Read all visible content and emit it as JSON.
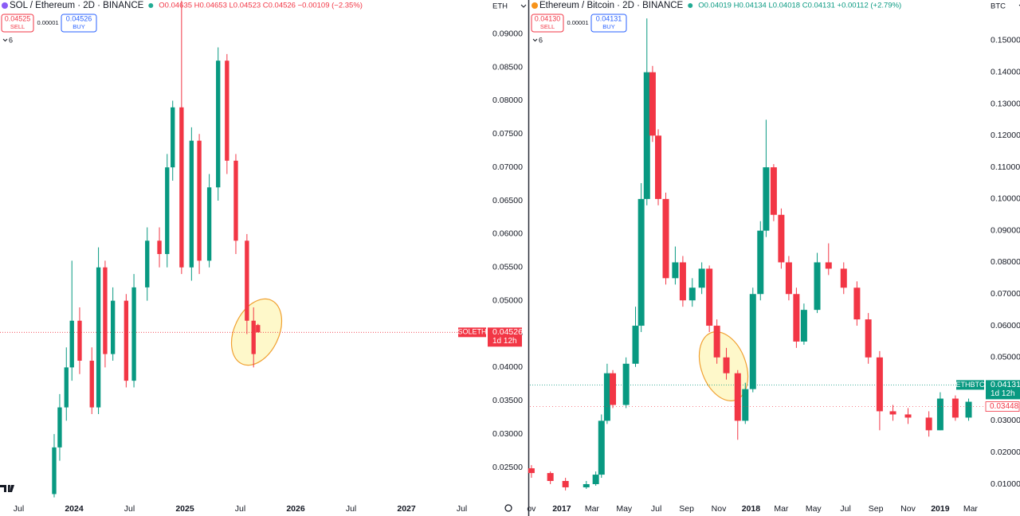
{
  "chart_data": [
    {
      "type": "candlestick",
      "title": "SOL / Ethereum · 2D · BINANCE",
      "ohlc": "O0.04635 H0.04653 L0.04523 C0.04526 −0.00109 (−2.35%)",
      "currency": "ETH",
      "sell": "0.04525",
      "sell_label": "SELL",
      "spread": "0.00001",
      "buy": "0.04526",
      "buy_label": "BUY",
      "indicators": "6",
      "symbol": "SOLETH",
      "countdown": "1d 12h",
      "up_color": "#089981",
      "down_color": "#f23645",
      "grid": false,
      "xlim": [
        2023.331,
        2027.719
      ],
      "ylim": [
        0.0201,
        0.0951
      ],
      "xticks": [
        {
          "value": 2023.5,
          "label": "Jul"
        },
        2024,
        {
          "value": 2024.5,
          "label": "Jul"
        },
        2025,
        {
          "value": 2025.5,
          "label": "Jul"
        },
        2026,
        {
          "value": 2026.5,
          "label": "Jul"
        },
        2027,
        {
          "value": 2027.5,
          "label": "Jul"
        }
      ],
      "yticks": [
        {
          "value": 0.025,
          "label": "0.02500"
        },
        {
          "value": 0.03,
          "label": "0.03000"
        },
        {
          "value": 0.035,
          "label": "0.03500"
        },
        {
          "value": 0.04,
          "label": "0.04000"
        },
        {
          "value": 0.045,
          "label": "0.04500"
        },
        {
          "value": 0.05,
          "label": "0.05000"
        },
        {
          "value": 0.055,
          "label": "0.05500"
        },
        {
          "value": 0.06,
          "label": "0.06000"
        },
        {
          "value": 0.065,
          "label": "0.06500"
        },
        {
          "value": 0.07,
          "label": "0.07000"
        },
        {
          "value": 0.075,
          "label": "0.07500"
        },
        {
          "value": 0.08,
          "label": "0.08000"
        },
        {
          "value": 0.085,
          "label": "0.08500"
        },
        {
          "value": 0.09,
          "label": "0.09000"
        }
      ],
      "x": [
        2023.82,
        2023.87,
        2023.93,
        2023.98,
        2024.05,
        2024.16,
        2024.22,
        2024.28,
        2024.35,
        2024.47,
        2024.54,
        2024.66,
        2024.77,
        2024.84,
        2024.89,
        2024.97,
        2025.06,
        2025.13,
        2025.22,
        2025.3,
        2025.38,
        2025.46,
        2025.56,
        2025.62,
        2025.66
      ],
      "open": [
        0.021,
        0.028,
        0.034,
        0.04,
        0.047,
        0.041,
        0.034,
        0.055,
        0.042,
        0.05,
        0.038,
        0.052,
        0.059,
        0.057,
        0.07,
        0.079,
        0.055,
        0.074,
        0.056,
        0.067,
        0.086,
        0.071,
        0.059,
        0.047,
        0.04635
      ],
      "high": [
        0.03,
        0.036,
        0.043,
        0.056,
        0.049,
        0.043,
        0.058,
        0.056,
        0.052,
        0.051,
        0.054,
        0.061,
        0.061,
        0.072,
        0.08,
        0.095,
        0.076,
        0.075,
        0.069,
        0.088,
        0.087,
        0.072,
        0.06,
        0.049,
        0.04653
      ],
      "low": [
        0.0205,
        0.026,
        0.032,
        0.038,
        0.039,
        0.033,
        0.033,
        0.04,
        0.041,
        0.037,
        0.037,
        0.05,
        0.055,
        0.055,
        0.068,
        0.054,
        0.053,
        0.054,
        0.055,
        0.065,
        0.069,
        0.057,
        0.045,
        0.04,
        0.04523
      ],
      "close": [
        0.028,
        0.034,
        0.04,
        0.047,
        0.041,
        0.034,
        0.055,
        0.042,
        0.05,
        0.038,
        0.052,
        0.059,
        0.057,
        0.07,
        0.079,
        0.055,
        0.074,
        0.056,
        0.067,
        0.086,
        0.071,
        0.059,
        0.047,
        0.042,
        0.04526
      ]
    },
    {
      "type": "candlestick",
      "title": "Ethereum / Bitcoin · 2D · BINANCE",
      "ohlc": "O0.04019 H0.04134 L0.04018 C0.04131 +0.00112 (+2.79%)",
      "currency": "BTC",
      "sell": "0.04130",
      "sell_label": "SELL",
      "spread": "0.00001",
      "buy": "0.04131",
      "buy_label": "BUY",
      "indicators": "6",
      "symbol": "ETHBTC",
      "countdown": "1d 12h",
      "marker_price": 0.03448,
      "up_color": "#089981",
      "down_color": "#f23645",
      "grid": false,
      "xlim": [
        2016.832,
        2019.232
      ],
      "ylim": [
        0.00497,
        0.1628
      ],
      "xticks": [
        {
          "value": 2016.84,
          "label": "ov"
        },
        2017,
        {
          "value": 2017.16,
          "label": "Mar"
        },
        {
          "value": 2017.33,
          "label": "May"
        },
        {
          "value": 2017.5,
          "label": "Jul"
        },
        {
          "value": 2017.66,
          "label": "Sep"
        },
        {
          "value": 2017.83,
          "label": "Nov"
        },
        2018,
        {
          "value": 2018.16,
          "label": "Mar"
        },
        {
          "value": 2018.33,
          "label": "May"
        },
        {
          "value": 2018.5,
          "label": "Jul"
        },
        {
          "value": 2018.66,
          "label": "Sep"
        },
        {
          "value": 2018.83,
          "label": "Nov"
        },
        2019,
        {
          "value": 2019.16,
          "label": "Mar"
        }
      ],
      "yticks": [
        {
          "value": 0.01,
          "label": "0.01000"
        },
        {
          "value": 0.02,
          "label": "0.02000"
        },
        {
          "value": 0.03,
          "label": "0.03000"
        },
        {
          "value": 0.04,
          "label": "0.04000"
        },
        {
          "value": 0.05,
          "label": "0.05000"
        },
        {
          "value": 0.06,
          "label": "0.06000"
        },
        {
          "value": 0.07,
          "label": "0.07000"
        },
        {
          "value": 0.08,
          "label": "0.08000"
        },
        {
          "value": 0.09,
          "label": "0.09000"
        },
        {
          "value": 0.1,
          "label": "0.10000"
        },
        {
          "value": 0.11,
          "label": "0.11000"
        },
        {
          "value": 0.12,
          "label": "0.12000"
        },
        {
          "value": 0.13,
          "label": "0.13000"
        },
        {
          "value": 0.14,
          "label": "0.14000"
        },
        {
          "value": 0.15,
          "label": "0.15000"
        }
      ],
      "x": [
        2016.84,
        2016.94,
        2017.02,
        2017.13,
        2017.18,
        2017.21,
        2017.24,
        2017.27,
        2017.34,
        2017.39,
        2017.42,
        2017.45,
        2017.48,
        2017.51,
        2017.55,
        2017.6,
        2017.64,
        2017.69,
        2017.74,
        2017.78,
        2017.82,
        2017.87,
        2017.93,
        2017.97,
        2018.01,
        2018.05,
        2018.08,
        2018.12,
        2018.16,
        2018.2,
        2018.24,
        2018.28,
        2018.35,
        2018.41,
        2018.49,
        2018.56,
        2018.62,
        2018.68,
        2018.75,
        2018.83,
        2018.94,
        2019.0,
        2019.08,
        2019.15,
        2019.19
      ],
      "open": [
        0.015,
        0.0135,
        0.011,
        0.009,
        0.01,
        0.013,
        0.03,
        0.045,
        0.035,
        0.048,
        0.06,
        0.1,
        0.14,
        0.12,
        0.1,
        0.075,
        0.08,
        0.068,
        0.072,
        0.078,
        0.06,
        0.05,
        0.045,
        0.03,
        0.04,
        0.07,
        0.09,
        0.11,
        0.095,
        0.08,
        0.07,
        0.055,
        0.065,
        0.08,
        0.078,
        0.072,
        0.062,
        0.05,
        0.033,
        0.032,
        0.031,
        0.027,
        0.037,
        0.031,
        0.04019
      ],
      "high": [
        0.016,
        0.014,
        0.012,
        0.011,
        0.014,
        0.032,
        0.048,
        0.046,
        0.05,
        0.066,
        0.105,
        0.157,
        0.142,
        0.122,
        0.102,
        0.085,
        0.082,
        0.075,
        0.08,
        0.079,
        0.062,
        0.053,
        0.046,
        0.042,
        0.072,
        0.093,
        0.125,
        0.111,
        0.097,
        0.082,
        0.072,
        0.067,
        0.083,
        0.086,
        0.08,
        0.074,
        0.064,
        0.052,
        0.035,
        0.034,
        0.033,
        0.039,
        0.038,
        0.037,
        0.04134
      ],
      "low": [
        0.012,
        0.01,
        0.008,
        0.0085,
        0.0095,
        0.012,
        0.029,
        0.034,
        0.034,
        0.047,
        0.058,
        0.098,
        0.118,
        0.098,
        0.073,
        0.073,
        0.066,
        0.066,
        0.07,
        0.058,
        0.048,
        0.043,
        0.024,
        0.029,
        0.039,
        0.068,
        0.088,
        0.093,
        0.078,
        0.068,
        0.053,
        0.054,
        0.064,
        0.076,
        0.07,
        0.06,
        0.048,
        0.027,
        0.03,
        0.029,
        0.025,
        0.027,
        0.03,
        0.03,
        0.04018
      ],
      "close": [
        0.0135,
        0.011,
        0.009,
        0.01,
        0.013,
        0.03,
        0.045,
        0.035,
        0.048,
        0.06,
        0.1,
        0.14,
        0.12,
        0.1,
        0.075,
        0.08,
        0.068,
        0.072,
        0.078,
        0.06,
        0.05,
        0.045,
        0.03,
        0.04,
        0.07,
        0.09,
        0.11,
        0.095,
        0.08,
        0.07,
        0.055,
        0.065,
        0.08,
        0.078,
        0.072,
        0.062,
        0.05,
        0.033,
        0.032,
        0.031,
        0.027,
        0.037,
        0.031,
        0.036,
        0.04131
      ]
    }
  ]
}
